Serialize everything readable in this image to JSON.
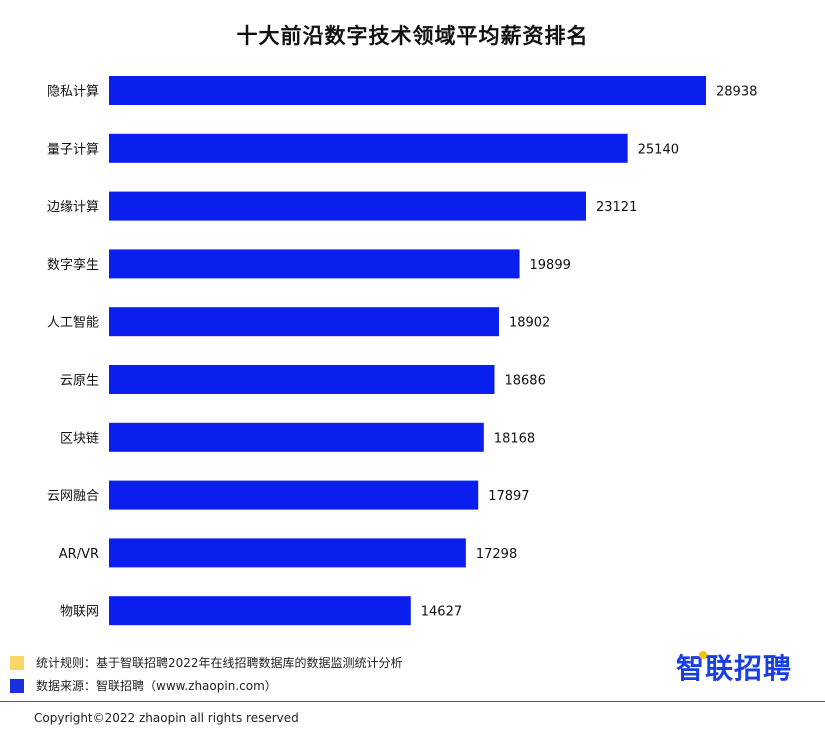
{
  "chart_data": {
    "type": "bar",
    "orientation": "horizontal",
    "title": "十大前沿数字技术领域平均薪资排名",
    "categories": [
      "隐私计算",
      "量子计算",
      "边缘计算",
      "数字孪生",
      "人工智能",
      "云原生",
      "区块链",
      "云网融合",
      "AR/VR",
      "物联网"
    ],
    "values": [
      28938,
      25140,
      23121,
      19899,
      18902,
      18686,
      18168,
      17897,
      17298,
      14627
    ],
    "bar_color": "#0a1ef0",
    "xlim": [
      0,
      30000
    ],
    "grid": false
  },
  "legend": {
    "rule_text": "统计规则：基于智联招聘2022年在线招聘数据库的数据监测统计分析",
    "rule_color": "#f9d66b",
    "source_text": "数据来源：智联招聘（www.zhaopin.com）",
    "source_color": "#1a2fe0"
  },
  "logo": {
    "text": "智联招聘",
    "color": "#1a3fe0",
    "dot_color": "#f5c300"
  },
  "footer": {
    "copyright": "Copyright©2022 zhaopin all rights reserved"
  }
}
